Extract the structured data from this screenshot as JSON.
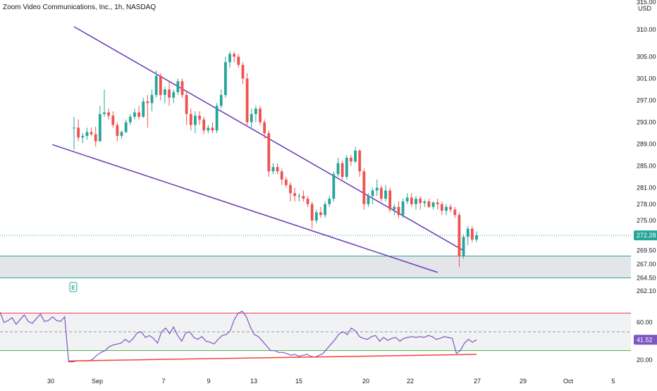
{
  "header": {
    "title": "Zoom Video Communications, Inc., 1h, NASDAQ"
  },
  "colors": {
    "up": "#26a69a",
    "down": "#ef5350",
    "trend": "#673ab7",
    "rsi_line": "#7e57c2",
    "rsi_upper": "#f23645",
    "rsi_lower": "#4caf50",
    "rsi_trend": "#f44336",
    "zone": "#b2b5be",
    "zone_border": "#26a69a"
  },
  "chart_data": [
    {
      "type": "candlestick",
      "currency": "USD",
      "y_axis_ticks": [
        "315.00",
        "310.00",
        "305.00",
        "301.00",
        "297.00",
        "293.00",
        "289.00",
        "285.00",
        "281.00",
        "278.00",
        "275.00",
        "272.28",
        "269.50",
        "267.00",
        "264.50",
        "262.10"
      ],
      "ylim": [
        262.1,
        315
      ],
      "last_price": "272.28",
      "x_ticks": [
        "30",
        "Sep",
        "7",
        "9",
        "13",
        "15",
        "20",
        "22",
        "27",
        "29",
        "Oct",
        "5"
      ],
      "earnings_marker": "E",
      "support_zone": [
        264.5,
        268.5
      ],
      "trend_lines": [
        {
          "name": "upper",
          "from": [
            0,
            310.5
          ],
          "to": [
            90,
            269.5
          ]
        },
        {
          "name": "lower",
          "from": [
            -5,
            288.9
          ],
          "to": [
            84,
            265.5
          ]
        }
      ],
      "candles": [
        [
          292,
          294,
          288,
          292
        ],
        [
          292,
          293.5,
          289.5,
          290.2
        ],
        [
          290.2,
          291,
          289.2,
          290.5
        ],
        [
          290.5,
          292,
          289.8,
          291.2
        ],
        [
          291.2,
          292,
          290.5,
          290.8
        ],
        [
          290.8,
          292.2,
          288.5,
          289.5
        ],
        [
          289.5,
          296,
          289.5,
          294.5
        ],
        [
          294.5,
          299,
          294,
          294.8
        ],
        [
          294.8,
          295.5,
          293.5,
          294.2
        ],
        [
          294.2,
          295,
          292,
          292.5
        ],
        [
          292.5,
          293,
          289.5,
          290.5
        ],
        [
          290.5,
          291.5,
          290,
          291.2
        ],
        [
          291.2,
          293.5,
          291,
          293
        ],
        [
          293,
          294.5,
          292.5,
          294
        ],
        [
          294,
          295.5,
          293.5,
          294.8
        ],
        [
          294.8,
          296,
          293.5,
          294
        ],
        [
          294,
          297.5,
          293.8,
          296.8
        ],
        [
          296.8,
          298,
          292,
          296.5
        ],
        [
          296.5,
          299,
          295,
          298
        ],
        [
          298,
          302.5,
          297.5,
          301.5
        ],
        [
          301.5,
          302,
          297,
          298
        ],
        [
          298,
          299.5,
          296.5,
          299
        ],
        [
          299,
          300.5,
          296,
          297.5
        ],
        [
          297.5,
          299,
          296.5,
          298.5
        ],
        [
          298.5,
          301,
          298,
          300.5
        ],
        [
          300.5,
          301,
          297.5,
          298
        ],
        [
          298,
          298.5,
          292.5,
          294.5
        ],
        [
          294.5,
          295.5,
          291.5,
          292.5
        ],
        [
          292.5,
          295,
          291,
          294.2
        ],
        [
          294.2,
          295,
          292.5,
          293.5
        ],
        [
          293.5,
          294,
          290.8,
          291.5
        ],
        [
          291.5,
          292.5,
          291,
          292
        ],
        [
          292,
          293,
          291,
          291.5
        ],
        [
          291.5,
          296.5,
          291,
          296
        ],
        [
          296,
          299,
          295.5,
          298
        ],
        [
          298,
          305,
          297.5,
          304
        ],
        [
          304,
          306,
          303,
          305.5
        ],
        [
          305.5,
          306,
          304,
          305
        ],
        [
          305,
          305.5,
          303,
          303.5
        ],
        [
          303.5,
          304,
          300,
          301
        ],
        [
          301,
          302,
          292.5,
          293
        ],
        [
          293,
          295.5,
          292,
          294.5
        ],
        [
          294.5,
          296,
          293,
          295.5
        ],
        [
          295.5,
          296,
          292.5,
          293
        ],
        [
          293,
          293.5,
          290,
          291
        ],
        [
          291,
          291.5,
          283,
          284
        ],
        [
          284,
          285.5,
          283.5,
          284.8
        ],
        [
          284.8,
          285.5,
          283.5,
          284
        ],
        [
          284,
          284.5,
          281.5,
          282.5
        ],
        [
          282.5,
          283,
          281,
          281.5
        ],
        [
          281.5,
          282,
          278.5,
          280
        ],
        [
          280,
          281,
          278.5,
          279.5
        ],
        [
          279.5,
          280,
          278.5,
          279.5
        ],
        [
          279.5,
          280.5,
          278.5,
          279
        ],
        [
          279,
          279.5,
          277.5,
          278
        ],
        [
          278,
          278.5,
          273.5,
          275
        ],
        [
          275,
          277,
          274.5,
          276.5
        ],
        [
          276.5,
          277.5,
          275.5,
          276
        ],
        [
          276,
          278.5,
          275.5,
          278
        ],
        [
          278,
          279.5,
          277.5,
          279
        ],
        [
          279,
          284,
          278.5,
          283.5
        ],
        [
          283.5,
          286.5,
          283,
          285.5
        ],
        [
          285.5,
          286,
          282.5,
          283
        ],
        [
          283,
          287,
          282.5,
          286.5
        ],
        [
          286.5,
          287,
          285,
          285.8
        ],
        [
          285.8,
          288.5,
          285.5,
          287.8
        ],
        [
          287.8,
          288,
          283,
          284
        ],
        [
          284,
          284.5,
          277,
          278
        ],
        [
          278,
          280,
          277.5,
          279.5
        ],
        [
          279.5,
          281,
          278,
          280.5
        ],
        [
          280.5,
          282.5,
          279.5,
          281
        ],
        [
          281,
          281.5,
          278.5,
          279
        ],
        [
          279,
          281.5,
          278.5,
          280.5
        ],
        [
          280.5,
          281,
          276.5,
          277
        ],
        [
          277,
          278,
          276,
          277.5
        ],
        [
          277.5,
          278.5,
          275.5,
          276
        ],
        [
          276,
          279,
          275.5,
          278.5
        ],
        [
          278.5,
          280,
          278,
          279.2
        ],
        [
          279.2,
          280,
          277.5,
          278
        ],
        [
          278,
          279.5,
          277,
          279
        ],
        [
          279,
          279.5,
          277,
          278.2
        ],
        [
          278.2,
          278.8,
          277.5,
          278.5
        ],
        [
          278.5,
          279,
          277.3,
          277.5
        ],
        [
          277.5,
          278.5,
          277,
          278.3
        ],
        [
          278.3,
          279,
          277,
          278
        ],
        [
          278,
          278.5,
          276,
          276.8
        ],
        [
          276.8,
          278,
          276,
          277.5
        ],
        [
          277.5,
          278,
          276.5,
          277
        ],
        [
          277,
          277.5,
          275.5,
          276
        ],
        [
          276,
          276.5,
          266.5,
          268.5
        ],
        [
          268.5,
          272.5,
          268,
          272
        ],
        [
          272,
          274,
          270.5,
          273.5
        ],
        [
          273.5,
          274,
          271,
          271.5
        ],
        [
          271.5,
          273,
          271,
          272.28
        ]
      ]
    },
    {
      "type": "line",
      "indicator": "RSI",
      "y_axis_ticks": [
        "60.00",
        "41.52",
        "20.00"
      ],
      "last_value": "41.52",
      "levels": [
        70,
        50,
        30
      ],
      "ylim": [
        17,
        77
      ],
      "values": [
        71,
        60,
        62,
        65,
        58,
        63,
        68,
        61,
        59,
        64,
        69,
        61,
        62,
        66,
        62,
        61,
        66,
        18,
        18,
        19,
        19,
        19,
        19,
        21,
        25,
        28,
        30,
        34,
        36,
        37,
        38,
        42,
        39,
        43,
        49,
        50,
        44,
        46,
        43,
        38,
        50,
        54,
        48,
        55,
        46,
        40,
        49,
        50,
        44,
        42,
        45,
        40,
        39,
        37,
        42,
        46,
        47,
        51,
        63,
        70,
        72,
        66,
        55,
        47,
        45,
        40,
        35,
        30,
        30,
        28,
        28,
        27,
        25,
        26,
        24,
        25,
        26,
        24,
        23,
        25,
        27,
        32,
        37,
        42,
        48,
        50,
        47,
        54,
        51,
        45,
        43,
        42,
        45,
        46,
        40,
        44,
        41,
        43,
        44,
        40,
        43,
        44,
        45,
        44,
        45,
        44,
        46,
        45,
        42,
        43,
        45,
        44,
        43,
        27,
        30,
        38,
        42,
        39,
        41.52
      ],
      "trend_line": {
        "from": [
          0,
          19
        ],
        "to": [
          118,
          26
        ]
      }
    }
  ]
}
